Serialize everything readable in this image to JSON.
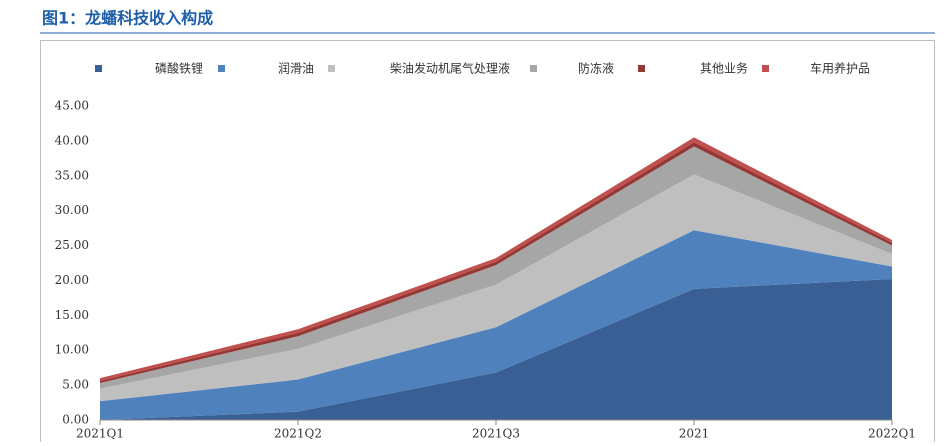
{
  "chart_data": {
    "type": "stacked_area",
    "title": "图1：龙蟠科技收入构成",
    "categories": [
      "2021Q1",
      "2021Q2",
      "2021Q3",
      "2021",
      "2022Q1"
    ],
    "series": [
      {
        "name": "磷酸铁锂",
        "color": "#3a5f94",
        "values": [
          0,
          1.2,
          6.8,
          18.8,
          20.2
        ]
      },
      {
        "name": "润滑油",
        "color": "#4f81bd",
        "values": [
          2.7,
          4.6,
          6.5,
          8.4,
          1.8
        ]
      },
      {
        "name": "柴油发动机尾气处理液",
        "color": "#bfbfbf",
        "values": [
          1.8,
          4.4,
          6.1,
          8.0,
          1.8
        ]
      },
      {
        "name": "防冻液",
        "color": "#a6a6a6",
        "values": [
          0.8,
          1.8,
          2.8,
          4.0,
          1.2
        ]
      },
      {
        "name": "其他业务",
        "color": "#953735",
        "values": [
          0.3,
          0.5,
          0.5,
          0.6,
          0.4
        ]
      },
      {
        "name": "车用养护品",
        "color": "#c0504d",
        "values": [
          0.4,
          0.5,
          0.5,
          0.7,
          0.4
        ]
      }
    ],
    "ylim": [
      0,
      45
    ],
    "yticks": [
      {
        "value": 0,
        "label": "0.00"
      },
      {
        "value": 5,
        "label": "5.00"
      },
      {
        "value": 10,
        "label": "10.00"
      },
      {
        "value": 15,
        "label": "15.00"
      },
      {
        "value": 20,
        "label": "20.00"
      },
      {
        "value": 25,
        "label": "25.00"
      },
      {
        "value": 30,
        "label": "30.00"
      },
      {
        "value": 35,
        "label": "35.00"
      },
      {
        "value": 40,
        "label": "40.00"
      },
      {
        "value": 45,
        "label": "45.00"
      }
    ],
    "legend": "top"
  }
}
